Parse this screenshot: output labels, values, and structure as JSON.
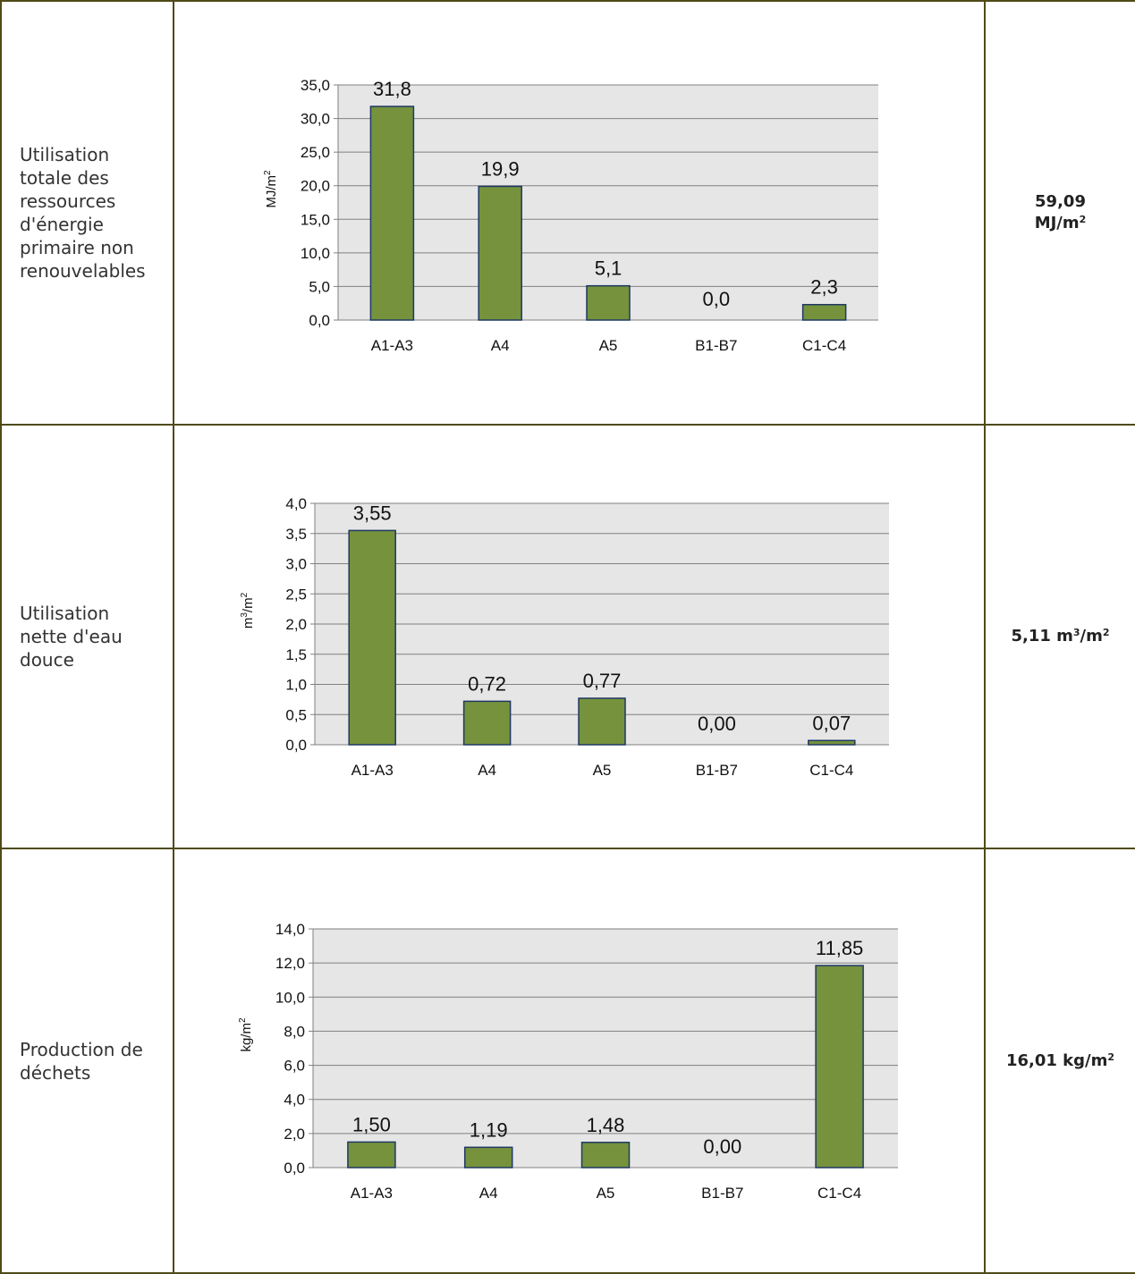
{
  "rows": [
    {
      "label_lines": [
        "Utilisation",
        "totale des",
        "ressources",
        "d'énergie",
        "primaire non",
        "renouvelables"
      ],
      "total": {
        "value": "59,09",
        "unit": "MJ/m",
        "sup": "2"
      },
      "unit_label": {
        "base": "MJ/m",
        "sup": "2"
      }
    },
    {
      "label_lines": [
        "Utilisation",
        "nette d'eau",
        "douce"
      ],
      "total": {
        "value": "5,11 m",
        "sup1": "3",
        "mid": "/m",
        "sup2": "2"
      },
      "unit_label": {
        "pre": "m",
        "sup1": "3",
        "mid": "/m",
        "sup2": "2"
      }
    },
    {
      "label_lines": [
        "Production de",
        "déchets"
      ],
      "total": {
        "value": "16,01 kg/m",
        "sup": "2"
      },
      "unit_label": {
        "base": "kg/m",
        "sup": "2"
      }
    }
  ],
  "colors": {
    "bar_fill": "#76923c",
    "bar_stroke": "#1f3864",
    "plot_bg": "#e6e6e6",
    "grid": "#808080",
    "border": "#4f4a17"
  },
  "chart_data": [
    {
      "type": "bar",
      "categories": [
        "A1-A3",
        "A4",
        "A5",
        "B1-B7",
        "C1-C4"
      ],
      "values": [
        31.8,
        19.9,
        5.1,
        0.0,
        2.3
      ],
      "value_labels": [
        "31,8",
        "19,9",
        "5,1",
        "0,0",
        "2,3"
      ],
      "ylim": [
        0,
        35
      ],
      "yticks": [
        "0,0",
        "5,0",
        "10,0",
        "15,0",
        "20,0",
        "25,0",
        "30,0",
        "35,0"
      ],
      "ylabel": "MJ/m2",
      "grid": true
    },
    {
      "type": "bar",
      "categories": [
        "A1-A3",
        "A4",
        "A5",
        "B1-B7",
        "C1-C4"
      ],
      "values": [
        3.55,
        0.72,
        0.77,
        0.0,
        0.07
      ],
      "value_labels": [
        "3,55",
        "0,72",
        "0,77",
        "0,00",
        "0,07"
      ],
      "ylim": [
        0,
        4
      ],
      "yticks": [
        "0,0",
        "0,5",
        "1,0",
        "1,5",
        "2,0",
        "2,5",
        "3,0",
        "3,5",
        "4,0"
      ],
      "ylabel": "m3/m2",
      "grid": true
    },
    {
      "type": "bar",
      "categories": [
        "A1-A3",
        "A4",
        "A5",
        "B1-B7",
        "C1-C4"
      ],
      "values": [
        1.5,
        1.19,
        1.48,
        0.0,
        11.85
      ],
      "value_labels": [
        "1,50",
        "1,19",
        "1,48",
        "0,00",
        "11,85"
      ],
      "ylim": [
        0,
        14
      ],
      "yticks": [
        "0,0",
        "2,0",
        "4,0",
        "6,0",
        "8,0",
        "10,0",
        "12,0",
        "14,0"
      ],
      "ylabel": "kg/m2",
      "grid": true
    }
  ]
}
